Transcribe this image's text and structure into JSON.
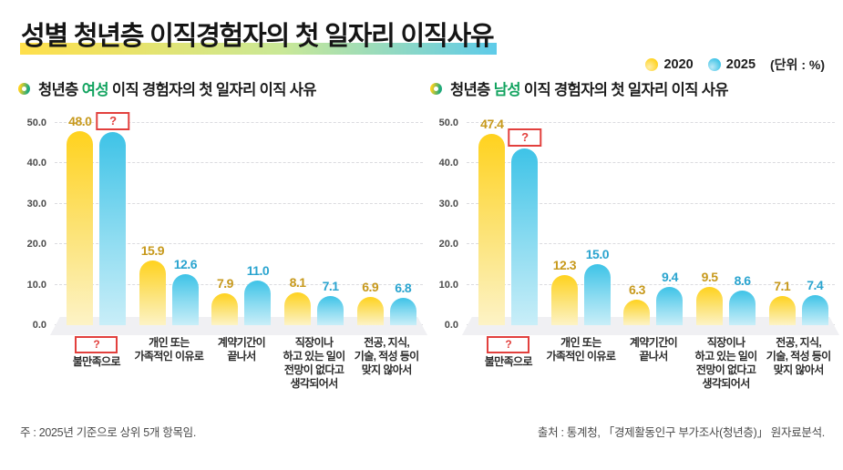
{
  "page": {
    "title": "성별 청년층 이직경험자의 첫 일자리 이직사유"
  },
  "legend": {
    "items": [
      {
        "label": "2020",
        "swatch": "yellow-gradient-dot"
      },
      {
        "label": "2025",
        "swatch": "blue-gradient-dot"
      }
    ],
    "unit": "(단위 : %)"
  },
  "charts_ui": [
    {
      "bullet": "ring-gradient-icon",
      "subtitle_prefix": "청년층 ",
      "subtitle_gender": "여성",
      "subtitle_suffix": " 이직 경험자의 첫 일자리 이직 사유"
    },
    {
      "bullet": "ring-gradient-icon",
      "subtitle_prefix": "청년층 ",
      "subtitle_gender": "남성",
      "subtitle_suffix": " 이직 경험자의 첫 일자리 이직 사유"
    }
  ],
  "colors": {
    "bar_2020_top": "#FFD21E",
    "bar_2020_bottom": "#FDF3C6",
    "bar_2025_top": "#3EC3E7",
    "bar_2025_bottom": "#C9EEF8",
    "value_label_2020": "#C7991C",
    "value_label_2025": "#2AA4CF",
    "masked_red": "#E2403D",
    "gender_green": "#12A35F",
    "title_highlight": [
      "#FFDF4B",
      "#C9E897",
      "#5ECBE9"
    ]
  },
  "chart_data": [
    {
      "type": "bar",
      "title": "청년층 여성 이직 경험자의 첫 일자리 이직 사유",
      "unit": "%",
      "ylim": [
        0,
        50
      ],
      "yticks": [
        "0.0",
        "10.0",
        "20.0",
        "30.0",
        "40.0",
        "50.0"
      ],
      "grid": "horizontal-dashed",
      "legend_position": "top-right-shared",
      "categories": [
        {
          "lines": [
            "?",
            "불만족으로"
          ],
          "masked_line": 0
        },
        {
          "lines": [
            "개인 또는",
            "가족적인 이유로"
          ]
        },
        {
          "lines": [
            "계약기간이",
            "끝나서"
          ]
        },
        {
          "lines": [
            "직장이나",
            "하고 있는 일이",
            "전망이 없다고",
            "생각되어서"
          ]
        },
        {
          "lines": [
            "전공, 지식,",
            "기술, 적성 등이",
            "맞지 않아서"
          ]
        }
      ],
      "series": [
        {
          "name": "2020",
          "labels": [
            "48.0",
            "15.9",
            "7.9",
            "8.1",
            "6.9"
          ],
          "values": [
            48.0,
            15.9,
            7.9,
            8.1,
            6.9
          ]
        },
        {
          "name": "2025",
          "labels": [
            "?",
            "12.6",
            "11.0",
            "7.1",
            "6.8"
          ],
          "values": [
            47.7,
            12.6,
            11.0,
            7.1,
            6.8
          ],
          "masked_indices": [
            0
          ],
          "note": "first value hidden by red ? box; bar height estimated from pixels"
        }
      ]
    },
    {
      "type": "bar",
      "title": "청년층 남성 이직 경험자의 첫 일자리 이직 사유",
      "unit": "%",
      "ylim": [
        0,
        50
      ],
      "yticks": [
        "0.0",
        "10.0",
        "20.0",
        "30.0",
        "40.0",
        "50.0"
      ],
      "grid": "horizontal-dashed",
      "legend_position": "top-right-shared",
      "categories": [
        {
          "lines": [
            "?",
            "불만족으로"
          ],
          "masked_line": 0
        },
        {
          "lines": [
            "개인 또는",
            "가족적인 이유로"
          ]
        },
        {
          "lines": [
            "계약기간이",
            "끝나서"
          ]
        },
        {
          "lines": [
            "직장이나",
            "하고 있는 일이",
            "전망이 없다고",
            "생각되어서"
          ]
        },
        {
          "lines": [
            "전공, 지식,",
            "기술, 적성 등이",
            "맞지 않아서"
          ]
        }
      ],
      "series": [
        {
          "name": "2020",
          "labels": [
            "47.4",
            "12.3",
            "6.3",
            "9.5",
            "7.1"
          ],
          "values": [
            47.4,
            12.3,
            6.3,
            9.5,
            7.1
          ]
        },
        {
          "name": "2025",
          "labels": [
            "?",
            "15.0",
            "9.4",
            "8.6",
            "7.4"
          ],
          "values": [
            43.7,
            15.0,
            9.4,
            8.6,
            7.4
          ],
          "masked_indices": [
            0
          ],
          "note": "first value hidden by red ? box; bar height estimated from pixels"
        }
      ]
    }
  ],
  "footer": {
    "note": "주 : 2025년 기준으로 상위 5개 항목임.",
    "source": "출처 : 통계청, 「경제활동인구 부가조사(청년층)」 원자료분석."
  }
}
